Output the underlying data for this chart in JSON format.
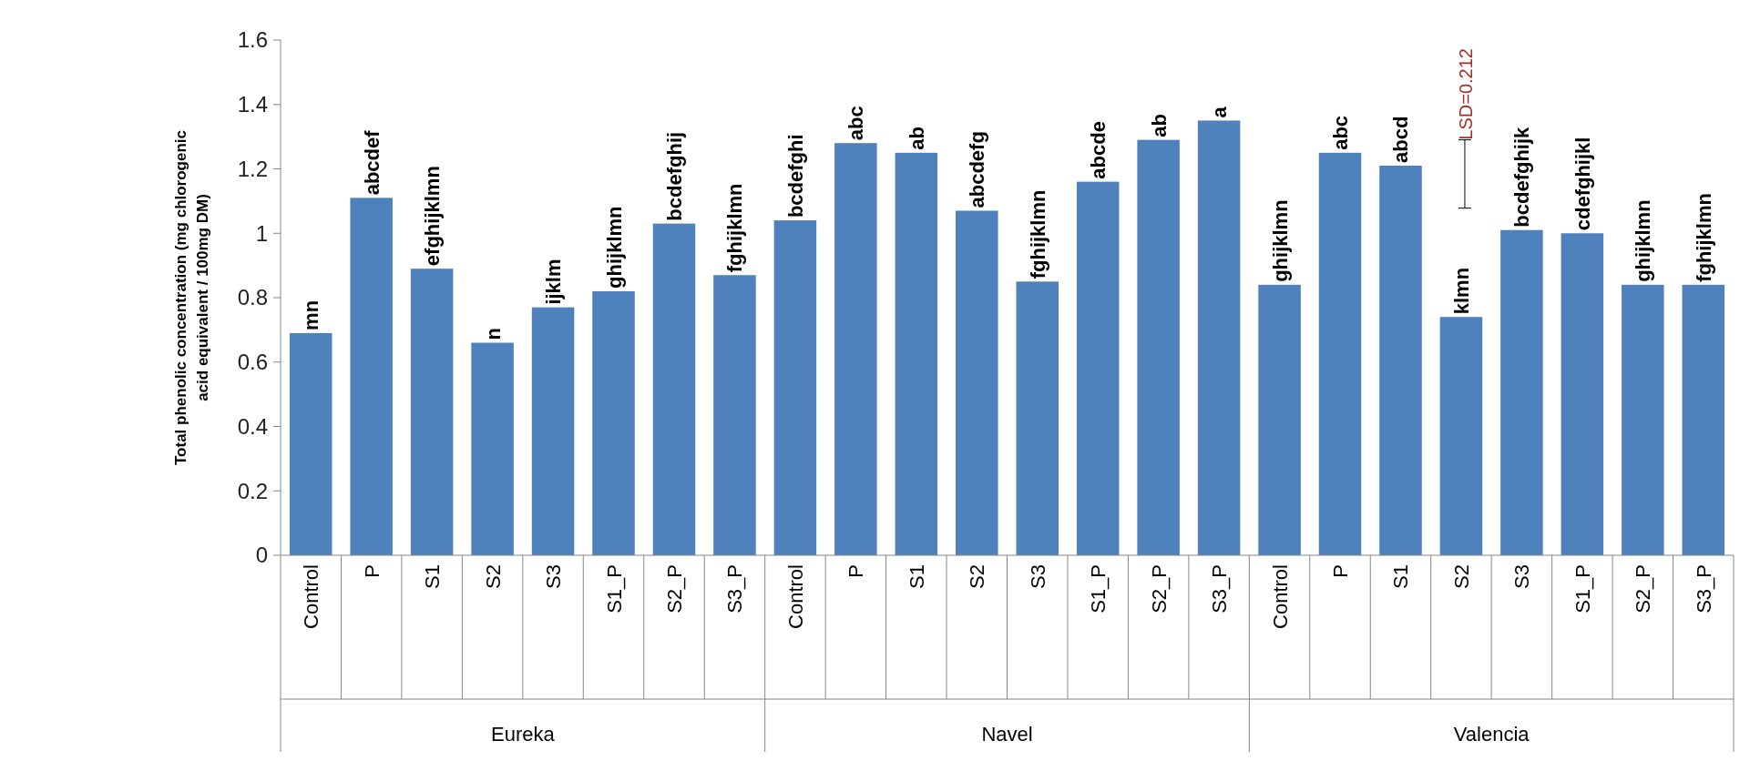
{
  "chart_data": {
    "type": "bar",
    "ylabel": "Total phenolic concentration (mg chlorogenic acid equivalent / 100mg DM)",
    "categories": [
      "Control",
      "P",
      "S1",
      "S2",
      "S3",
      "S1_P",
      "S2_P",
      "S3_P",
      "Control",
      "P",
      "S1",
      "S2",
      "S3",
      "S1_P",
      "S2_P",
      "S3_P",
      "Control",
      "P",
      "S1",
      "S2",
      "S3",
      "S1_P",
      "S2_P",
      "S3_P"
    ],
    "values": [
      0.69,
      1.11,
      0.89,
      0.66,
      0.77,
      0.82,
      1.03,
      0.87,
      1.04,
      1.28,
      1.25,
      1.07,
      0.85,
      1.16,
      1.29,
      1.35,
      0.84,
      1.25,
      1.21,
      0.74,
      1.01,
      1.0,
      0.84,
      0.84
    ],
    "value_labels": [
      "mn",
      "abcdef",
      "efghijklmn",
      "n",
      "ijklm",
      "ghijklmn",
      "bcdefghij",
      "fghijklmn",
      "bcdefghi",
      "abc",
      "ab",
      "abcdefg",
      "fghijklmn",
      "abcde",
      "ab",
      "a",
      "ghijklmn",
      "abc",
      "abcd",
      "klmn",
      "bcdefghijk",
      "cdefghijkl",
      "ghijklmn",
      "fghijklmn"
    ],
    "color": "#4f81bd",
    "ylim": [
      0,
      1.6
    ],
    "yticks": [
      0,
      0.2,
      0.4,
      0.6,
      0.8,
      1,
      1.2,
      1.4,
      1.6
    ],
    "annotations": [
      "LSD=0.212",
      "Eureka",
      "Navel",
      "Valencia"
    ]
  }
}
